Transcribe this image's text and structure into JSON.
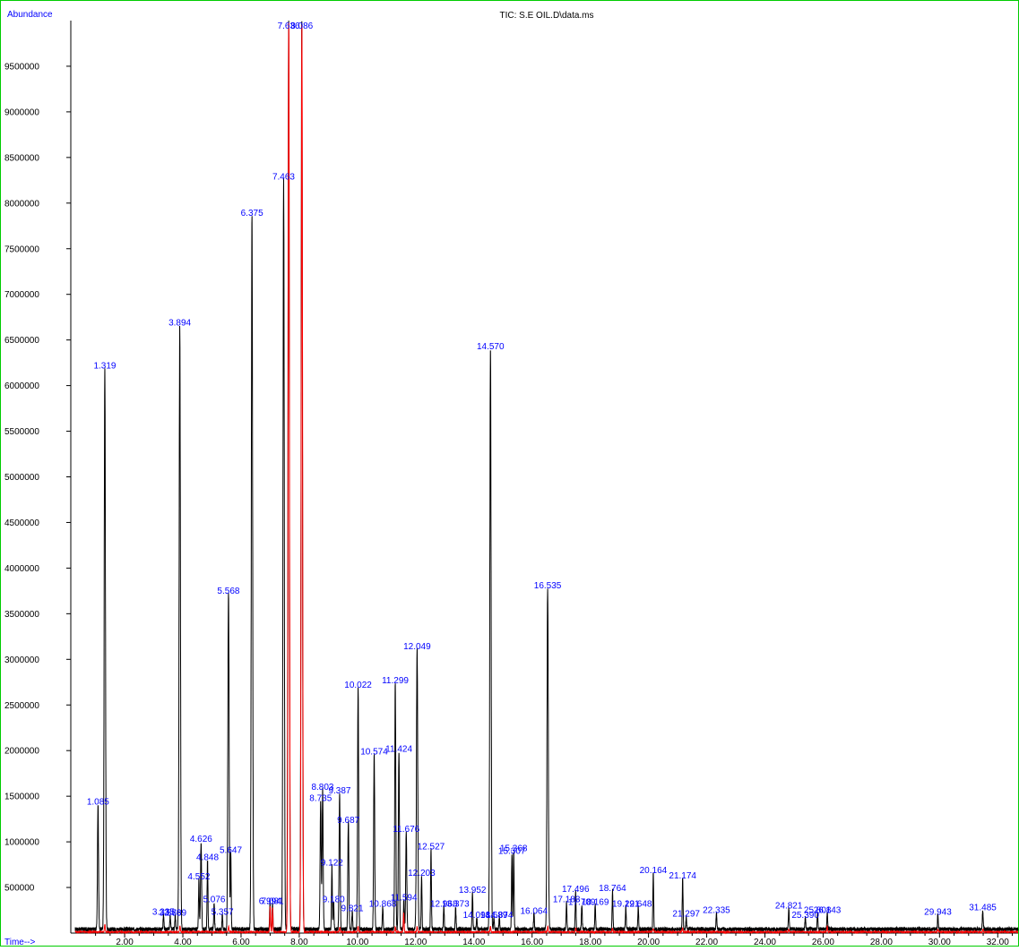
{
  "title": "TIC: S.E OIL.D\\data.ms",
  "ylabel": "Abundance",
  "xlabel": "Time-->",
  "colors": {
    "trace": "#000000",
    "overlay": "#ff0000",
    "peak_label": "#0000ff",
    "frame": "#00cc00"
  },
  "chart_data": {
    "type": "line",
    "title": "TIC: S.E OIL.D\\data.ms",
    "xlabel": "Time-->",
    "ylabel": "Abundance",
    "xlim": [
      0.15,
      32.7
    ],
    "ylim": [
      0,
      10000000
    ],
    "x_ticks": [
      2,
      4,
      6,
      8,
      10,
      12,
      14,
      16,
      18,
      20,
      22,
      24,
      26,
      28,
      30,
      32
    ],
    "x_tick_labels": [
      "2.00",
      "4.00",
      "6.00",
      "8.00",
      "10.00",
      "12.00",
      "14.00",
      "16.00",
      "18.00",
      "20.00",
      "22.00",
      "24.00",
      "26.00",
      "28.00",
      "30.00",
      "32.00"
    ],
    "y_ticks": [
      500000,
      1000000,
      1500000,
      2000000,
      2500000,
      3000000,
      3500000,
      4000000,
      4500000,
      5000000,
      5500000,
      6000000,
      6500000,
      7000000,
      7500000,
      8000000,
      8500000,
      9000000,
      9500000
    ],
    "y_tick_labels": [
      "500000",
      "1000000",
      "1500000",
      "2000000",
      "2500000",
      "3000000",
      "3500000",
      "4000000",
      "4500000",
      "5000000",
      "5500000",
      "6000000",
      "6500000",
      "7000000",
      "7500000",
      "8000000",
      "8500000",
      "9000000",
      "9500000"
    ],
    "grid": false,
    "series": [
      {
        "color": "#000000",
        "peaks": [
          {
            "label": "1.085",
            "x": 1.085,
            "y": 1370000
          },
          {
            "label": "1.319",
            "x": 1.319,
            "y": 6150000
          },
          {
            "label": "3.335",
            "x": 3.335,
            "y": 160000
          },
          {
            "label": "3.566",
            "x": 3.566,
            "y": 150000
          },
          {
            "label": "3.739",
            "x": 3.739,
            "y": 150000
          },
          {
            "label": "3.894",
            "x": 3.894,
            "y": 6620000
          },
          {
            "label": "4.552",
            "x": 4.552,
            "y": 550000
          },
          {
            "label": "4.626",
            "x": 4.626,
            "y": 960000
          },
          {
            "label": "4.848",
            "x": 4.848,
            "y": 760000
          },
          {
            "label": "5.076",
            "x": 5.076,
            "y": 300000
          },
          {
            "label": "5.357",
            "x": 5.357,
            "y": 160000
          },
          {
            "label": "5.568",
            "x": 5.568,
            "y": 3680000
          },
          {
            "label": "5.647",
            "x": 5.647,
            "y": 840000
          },
          {
            "label": "6.375",
            "x": 6.375,
            "y": 7820000
          },
          {
            "label": "6.994",
            "x": 6.994,
            "y": 280000
          },
          {
            "label": "7.081",
            "x": 7.081,
            "y": 280000
          },
          {
            "label": "7.463",
            "x": 7.463,
            "y": 8220000
          },
          {
            "label": "7.636",
            "x": 7.636,
            "y": 9970000
          },
          {
            "label": "8.086",
            "x": 8.086,
            "y": 9970000
          },
          {
            "label": "8.735",
            "x": 8.735,
            "y": 1410000
          },
          {
            "label": "8.803",
            "x": 8.803,
            "y": 1530000
          },
          {
            "label": "9.122",
            "x": 9.122,
            "y": 700000
          },
          {
            "label": "9.180",
            "x": 9.18,
            "y": 300000
          },
          {
            "label": "9.387",
            "x": 9.387,
            "y": 1490000
          },
          {
            "label": "9.687",
            "x": 9.687,
            "y": 1170000
          },
          {
            "label": "9.821",
            "x": 9.821,
            "y": 200000
          },
          {
            "label": "10.022",
            "x": 10.022,
            "y": 2650000
          },
          {
            "label": "10.574",
            "x": 10.574,
            "y": 1920000
          },
          {
            "label": "10.868",
            "x": 10.868,
            "y": 250000
          },
          {
            "label": "11.299",
            "x": 11.299,
            "y": 2700000
          },
          {
            "label": "11.424",
            "x": 11.424,
            "y": 1950000
          },
          {
            "label": "11.594",
            "x": 11.594,
            "y": 320000
          },
          {
            "label": "11.676",
            "x": 11.676,
            "y": 1070000
          },
          {
            "label": "12.049",
            "x": 12.049,
            "y": 3070000
          },
          {
            "label": "12.203",
            "x": 12.203,
            "y": 590000
          },
          {
            "label": "12.527",
            "x": 12.527,
            "y": 880000
          },
          {
            "label": "12.968",
            "x": 12.968,
            "y": 250000
          },
          {
            "label": "13.373",
            "x": 13.373,
            "y": 250000
          },
          {
            "label": "13.952",
            "x": 13.952,
            "y": 400000
          },
          {
            "label": "14.098",
            "x": 14.098,
            "y": 130000
          },
          {
            "label": "14.570",
            "x": 14.57,
            "y": 6360000
          },
          {
            "label": "14.689",
            "x": 14.689,
            "y": 130000
          },
          {
            "label": "14.874",
            "x": 14.874,
            "y": 130000
          },
          {
            "label": "15.307",
            "x": 15.307,
            "y": 830000
          },
          {
            "label": "15.368",
            "x": 15.368,
            "y": 860000
          },
          {
            "label": "16.064",
            "x": 16.064,
            "y": 170000
          },
          {
            "label": "16.535",
            "x": 16.535,
            "y": 3740000
          },
          {
            "label": "17.183",
            "x": 17.183,
            "y": 300000
          },
          {
            "label": "17.496",
            "x": 17.496,
            "y": 410000
          },
          {
            "label": "17.709",
            "x": 17.709,
            "y": 270000
          },
          {
            "label": "18.169",
            "x": 18.169,
            "y": 270000
          },
          {
            "label": "18.764",
            "x": 18.764,
            "y": 420000
          },
          {
            "label": "19.221",
            "x": 19.221,
            "y": 250000
          },
          {
            "label": "19.648",
            "x": 19.648,
            "y": 250000
          },
          {
            "label": "20.164",
            "x": 20.164,
            "y": 620000
          },
          {
            "label": "21.174",
            "x": 21.174,
            "y": 560000
          },
          {
            "label": "21.297",
            "x": 21.297,
            "y": 140000
          },
          {
            "label": "22.335",
            "x": 22.335,
            "y": 180000
          },
          {
            "label": "24.821",
            "x": 24.821,
            "y": 230000
          },
          {
            "label": "25.390",
            "x": 25.39,
            "y": 130000
          },
          {
            "label": "25.808",
            "x": 25.808,
            "y": 180000
          },
          {
            "label": "26.143",
            "x": 26.143,
            "y": 180000
          },
          {
            "label": "29.943",
            "x": 29.943,
            "y": 160000
          },
          {
            "label": "31.485",
            "x": 31.485,
            "y": 210000
          }
        ]
      },
      {
        "color": "#ff0000",
        "peaks": [
          {
            "x": 1.32,
            "y": 80000
          },
          {
            "x": 3.9,
            "y": 70000
          },
          {
            "x": 5.57,
            "y": 60000
          },
          {
            "x": 7.0,
            "y": 280000
          },
          {
            "x": 7.08,
            "y": 260000
          },
          {
            "x": 7.64,
            "y": 9970000
          },
          {
            "x": 8.09,
            "y": 9970000
          },
          {
            "x": 9.39,
            "y": 50000
          },
          {
            "x": 10.02,
            "y": 60000
          },
          {
            "x": 11.3,
            "y": 50000
          },
          {
            "x": 11.59,
            "y": 200000
          },
          {
            "x": 12.05,
            "y": 60000
          },
          {
            "x": 14.57,
            "y": 60000
          },
          {
            "x": 16.54,
            "y": 60000
          },
          {
            "x": 17.5,
            "y": 40000
          },
          {
            "x": 18.76,
            "y": 40000
          },
          {
            "x": 20.16,
            "y": 40000
          },
          {
            "x": 21.17,
            "y": 40000
          },
          {
            "x": 24.82,
            "y": 30000
          },
          {
            "x": 26.14,
            "y": 60000
          },
          {
            "x": 29.94,
            "y": 30000
          },
          {
            "x": 31.49,
            "y": 30000
          }
        ]
      }
    ]
  }
}
